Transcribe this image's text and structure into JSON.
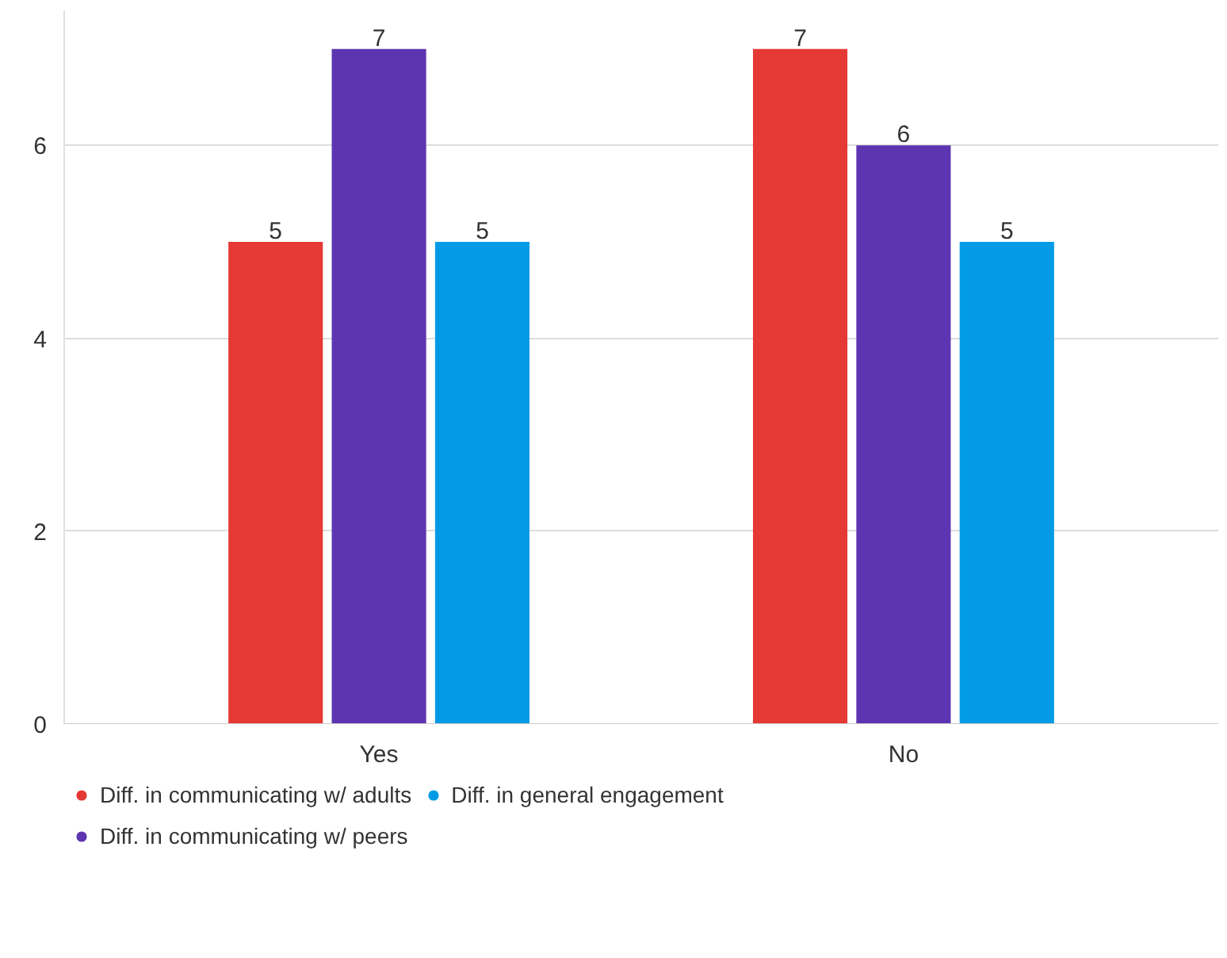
{
  "chart_data": {
    "type": "bar",
    "categories": [
      "Yes",
      "No"
    ],
    "series": [
      {
        "name": "Diff. in communicating w/ adults",
        "color": "#e53935",
        "values": [
          5,
          7
        ]
      },
      {
        "name": "Diff. in communicating w/ peers",
        "color": "#5e35b1",
        "values": [
          7,
          6
        ]
      },
      {
        "name": "Diff. in general engagement",
        "color": "#039be5",
        "values": [
          5,
          5
        ]
      }
    ],
    "ylim": [
      0,
      7.4
    ],
    "yticks": [
      0,
      2,
      4,
      6
    ],
    "grid": "y",
    "legend": "bottom",
    "data_labels": true
  }
}
